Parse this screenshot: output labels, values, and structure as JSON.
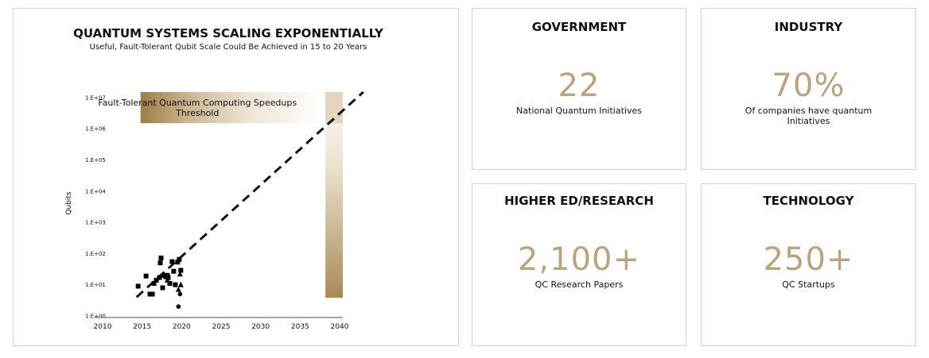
{
  "chart_data": {
    "type": "scatter",
    "title": "QUANTUM SYSTEMS SCALING EXPONENTIALLY",
    "subtitle": "Useful, Fault-Tolerant Qubit Scale Could Be Achieved in 15 to 20 Years",
    "ylabel": "Qubits",
    "xlabel": "",
    "y_scale": "log",
    "ylim": [
      1,
      20000000
    ],
    "xlim": [
      2010,
      2040
    ],
    "x_ticks": [
      "2010",
      "2015",
      "2020",
      "2025",
      "2030",
      "2035",
      "2040"
    ],
    "y_ticks": [
      "1.E+00",
      "1.E+01",
      "1.E+02",
      "1.E+03",
      "1.E+04",
      "1.E+05",
      "1.E+06",
      "1.E+07"
    ],
    "threshold_label": "Fault-Tolerant Quantum Computing Speedups Threshold",
    "threshold_y_range": [
      1500000,
      15000000
    ],
    "threshold_x_range": [
      2038,
      2040
    ],
    "trend_line": {
      "style": "dashed",
      "from": [
        2014.3,
        4
      ],
      "to": [
        2043,
        15000000
      ]
    },
    "series": [
      {
        "marker": "square",
        "points": [
          [
            2014.5,
            9
          ],
          [
            2015.5,
            19
          ],
          [
            2016,
            5
          ],
          [
            2016.3,
            5
          ],
          [
            2016.5,
            11
          ],
          [
            2016.8,
            14
          ],
          [
            2017.2,
            17
          ],
          [
            2017.3,
            50
          ],
          [
            2017.4,
            72
          ],
          [
            2017.6,
            8
          ],
          [
            2017.8,
            20
          ],
          [
            2018,
            18
          ],
          [
            2018.2,
            20
          ],
          [
            2018.3,
            17
          ],
          [
            2018.5,
            11
          ],
          [
            2018.8,
            55
          ],
          [
            2019,
            27
          ],
          [
            2019.2,
            10
          ],
          [
            2019.5,
            53
          ],
          [
            2019.7,
            65
          ],
          [
            2019.9,
            29
          ]
        ]
      },
      {
        "marker": "triangle",
        "points": [
          [
            2019.8,
            22
          ],
          [
            2019.9,
            10
          ],
          [
            2019.6,
            7
          ],
          [
            2018.2,
            14
          ]
        ]
      },
      {
        "marker": "circle",
        "points": [
          [
            2019.6,
            2
          ],
          [
            2019.8,
            5
          ]
        ]
      }
    ],
    "colors": {
      "gold": "#a88a55",
      "light_gold": "#f5eee2",
      "trend": "#111111"
    }
  },
  "cards": {
    "government": {
      "title": "GOVERNMENT",
      "value": "22",
      "desc": "National Quantum Initiatives"
    },
    "industry": {
      "title": "INDUSTRY",
      "value": "70%",
      "desc": "Of companies have quantum Initiatives"
    },
    "higher_ed": {
      "title": "HIGHER ED/RESEARCH",
      "value": "2,100+",
      "desc": "QC Research Papers"
    },
    "technology": {
      "title": "TECHNOLOGY",
      "value": "250+",
      "desc": "QC Startups"
    }
  },
  "accent_color": "#b8a57f"
}
